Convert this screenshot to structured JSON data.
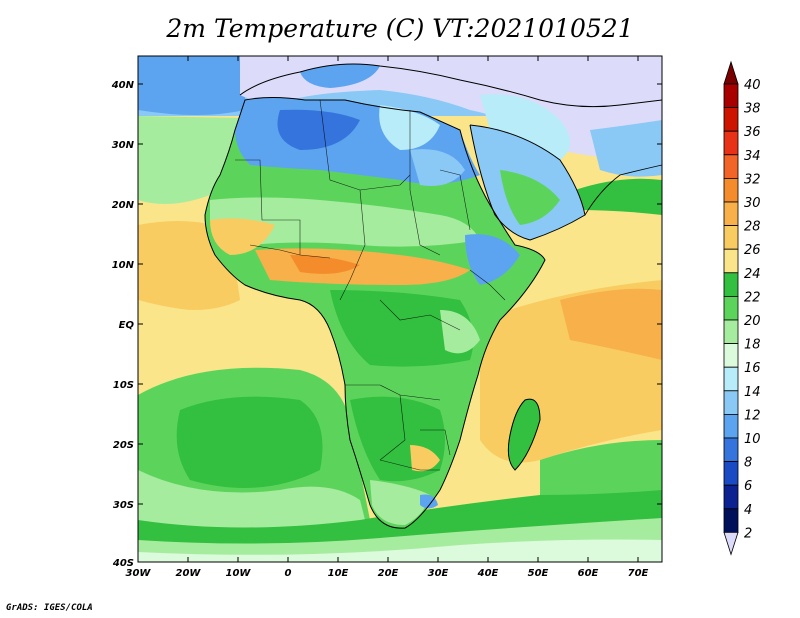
{
  "title": "2m Temperature (C) VT:2021010521",
  "footer": "GrADS: IGES/COLA",
  "map": {
    "lat_ticks": [
      "40N",
      "30N",
      "20N",
      "10N",
      "EQ",
      "10S",
      "20S",
      "30S",
      "40S"
    ],
    "lon_ticks": [
      "30W",
      "20W",
      "10W",
      "0",
      "10E",
      "20E",
      "30E",
      "40E",
      "50E",
      "60E",
      "70E"
    ]
  },
  "colorbar": {
    "labels": [
      "40",
      "38",
      "36",
      "34",
      "32",
      "30",
      "28",
      "26",
      "24",
      "22",
      "20",
      "18",
      "16",
      "14",
      "12",
      "10",
      "8",
      "6",
      "4",
      "2"
    ],
    "colors": [
      "#7a0000",
      "#a80000",
      "#cc1400",
      "#e83218",
      "#f26428",
      "#f58c2c",
      "#f7b04a",
      "#f9cc62",
      "#fae58a",
      "#33bf3f",
      "#5cd45c",
      "#a6ec9e",
      "#dcfadc",
      "#b8ecf8",
      "#8ac8f6",
      "#5ca4f0",
      "#3474dc",
      "#1a4ac4",
      "#0c2290",
      "#00105a",
      "#dcdcfa"
    ]
  }
}
